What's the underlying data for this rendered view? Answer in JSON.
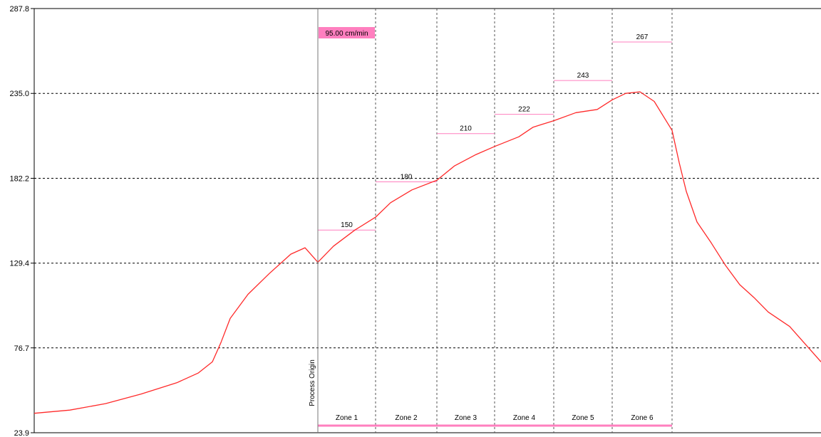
{
  "chart_data": {
    "type": "line",
    "y_ticks": [
      "287.8",
      "235.0",
      "182.2",
      "129.4",
      "76.7",
      "23.9"
    ],
    "ylim": [
      23.9,
      287.8
    ],
    "xlim": [
      0,
      1104
    ],
    "process_origin_label": "Process Origin",
    "process_origin_x": 398,
    "speed_label": "95.00 cm/min",
    "colors": {
      "curve": "#ff2a2a",
      "setpoint": "#ff7fbf",
      "speed_bg": "#ff7fbf",
      "zone_bar": "#ff7fbf",
      "grid": "#000000"
    },
    "zones": [
      {
        "label": "Zone 1",
        "x_start": 398,
        "x_end": 479,
        "setpoint": 150,
        "setpoint_label": "150"
      },
      {
        "label": "Zone 2",
        "x_start": 479,
        "x_end": 565,
        "setpoint": 180,
        "setpoint_label": "180"
      },
      {
        "label": "Zone 3",
        "x_start": 565,
        "x_end": 646,
        "setpoint": 210,
        "setpoint_label": "210"
      },
      {
        "label": "Zone 4",
        "x_start": 646,
        "x_end": 729,
        "setpoint": 222,
        "setpoint_label": "222"
      },
      {
        "label": "Zone 5",
        "x_start": 729,
        "x_end": 811,
        "setpoint": 243,
        "setpoint_label": "243"
      },
      {
        "label": "Zone 6",
        "x_start": 811,
        "x_end": 895,
        "setpoint": 267,
        "setpoint_label": "267"
      }
    ],
    "series": [
      {
        "x": [
          0,
          50,
          100,
          150,
          200,
          230,
          250,
          262,
          275,
          300,
          330,
          360,
          380,
          398,
          420,
          450,
          479,
          500,
          530,
          565,
          590,
          620,
          646,
          680,
          700,
          729,
          760,
          790,
          811,
          830,
          850,
          870,
          895,
          905,
          915,
          930,
          950,
          970,
          990,
          1010,
          1030,
          1060,
          1104
        ],
        "y": [
          36,
          38,
          42,
          48,
          55,
          61,
          68,
          80,
          95,
          110,
          123,
          135,
          139,
          130,
          140,
          150,
          158,
          167,
          175,
          181,
          190,
          197,
          202,
          208,
          214,
          218,
          223,
          225,
          231,
          235,
          236,
          230,
          212,
          192,
          174,
          155,
          142,
          128,
          116,
          108,
          99,
          90,
          68
        ]
      }
    ]
  }
}
